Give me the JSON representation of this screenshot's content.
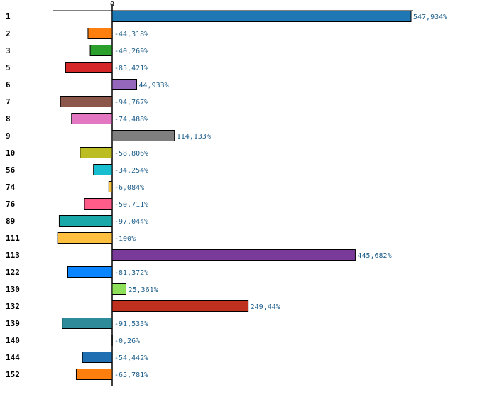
{
  "chart_data": {
    "type": "bar",
    "orientation": "horizontal",
    "title": "",
    "xlabel": "",
    "ylabel": "",
    "xlim": [
      -100,
      547.934
    ],
    "zero_label": "0",
    "categories": [
      "1",
      "2",
      "3",
      "5",
      "6",
      "7",
      "8",
      "9",
      "10",
      "56",
      "74",
      "76",
      "89",
      "111",
      "113",
      "122",
      "130",
      "132",
      "139",
      "140",
      "144",
      "152"
    ],
    "values": [
      547.934,
      -44.318,
      -40.269,
      -85.421,
      44.933,
      -94.767,
      -74.488,
      114.133,
      -58.806,
      -34.254,
      -6.084,
      -50.711,
      -97.044,
      -100,
      445.682,
      -81.372,
      25.361,
      249.44,
      -91.533,
      -0.26,
      -54.442,
      -65.781
    ],
    "value_labels": [
      "547,934%",
      "-44,318%",
      "-40,269%",
      "-85,421%",
      "44,933%",
      "-94,767%",
      "-74,488%",
      "114,133%",
      "-58,806%",
      "-34,254%",
      "-6,084%",
      "-50,711%",
      "-97,044%",
      "-100%",
      "445,682%",
      "-81,372%",
      "25,361%",
      "249,44%",
      "-91,533%",
      "-0,26%",
      "-54,442%",
      "-65,781%"
    ],
    "colors": [
      "#1f77b4",
      "#ff7f0e",
      "#2ca02c",
      "#d62728",
      "#9467bd",
      "#8c564b",
      "#e377c2",
      "#7f7f7f",
      "#bcbd22",
      "#17becf",
      "#f5c242",
      "#ff5c8a",
      "#1aa8a8",
      "#ffbf3f",
      "#7a3a9a",
      "#0a84ff",
      "#8ee05a",
      "#c0301e",
      "#2e8b9a",
      "#ff7f0e",
      "#1f6fb2",
      "#ff7f0e"
    ]
  }
}
